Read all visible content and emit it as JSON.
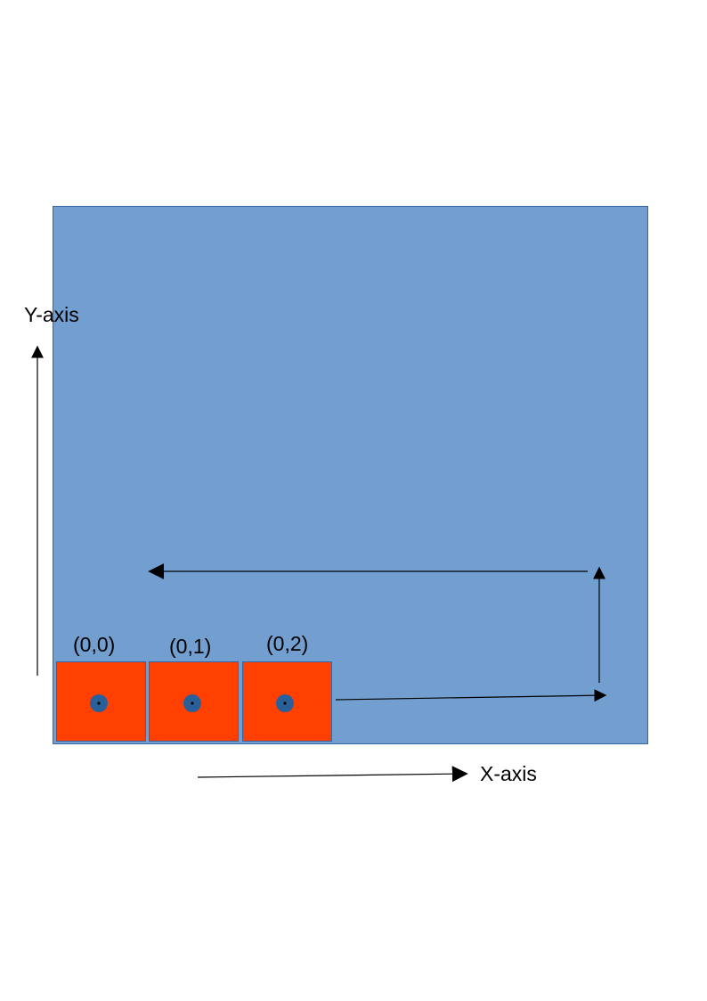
{
  "colors": {
    "background": "#ffffff",
    "field": "#729fcf",
    "field_border": "#3465a4",
    "cell": "#ff4000",
    "cell_border": "#3465a4",
    "cell_dot": "#2a6099",
    "cell_dot_center": "#000000",
    "arrow": "#000000",
    "label": "#000000"
  },
  "axes": {
    "y_label": "Y-axis",
    "x_label": "X-axis"
  },
  "cells": [
    {
      "label": "(0,0)"
    },
    {
      "label": "(0,1)"
    },
    {
      "label": "(0,2)"
    }
  ],
  "path_arrows": [
    "right",
    "up",
    "left"
  ]
}
